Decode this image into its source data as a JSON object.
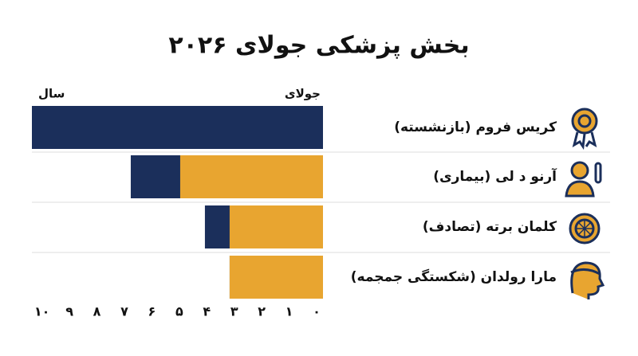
{
  "chart_data": {
    "type": "bar",
    "orientation": "horizontal",
    "overlap": true,
    "title": "بخش پزشکی جولای ۲۰۲۶",
    "categories": [
      "کریس فروم (بازنشسته)",
      "آرنو د لی (بیماری)",
      "کلمان برته (تصادف)",
      "مارا رولدان (شکستگی جمجمه)"
    ],
    "series": [
      {
        "name": "سال",
        "color": "#1b2f5b",
        "values": [
          10.6,
          7.0,
          4.3,
          3.4
        ]
      },
      {
        "name": "جولای",
        "color": "#e8a530",
        "values": [
          0,
          5.2,
          3.4,
          3.4
        ]
      }
    ],
    "xlim": [
      0,
      10.6
    ],
    "xticks": [
      {
        "value": 0,
        "label": "۰"
      },
      {
        "value": 1,
        "label": "۱"
      },
      {
        "value": 2,
        "label": "۲"
      },
      {
        "value": 3,
        "label": "۳"
      },
      {
        "value": 4,
        "label": "۴"
      },
      {
        "value": 5,
        "label": "۵"
      },
      {
        "value": 6,
        "label": "۶"
      },
      {
        "value": 7,
        "label": "۷"
      },
      {
        "value": 8,
        "label": "۸"
      },
      {
        "value": 9,
        "label": "۹"
      },
      {
        "value": 10,
        "label": "۱۰"
      }
    ]
  }
}
